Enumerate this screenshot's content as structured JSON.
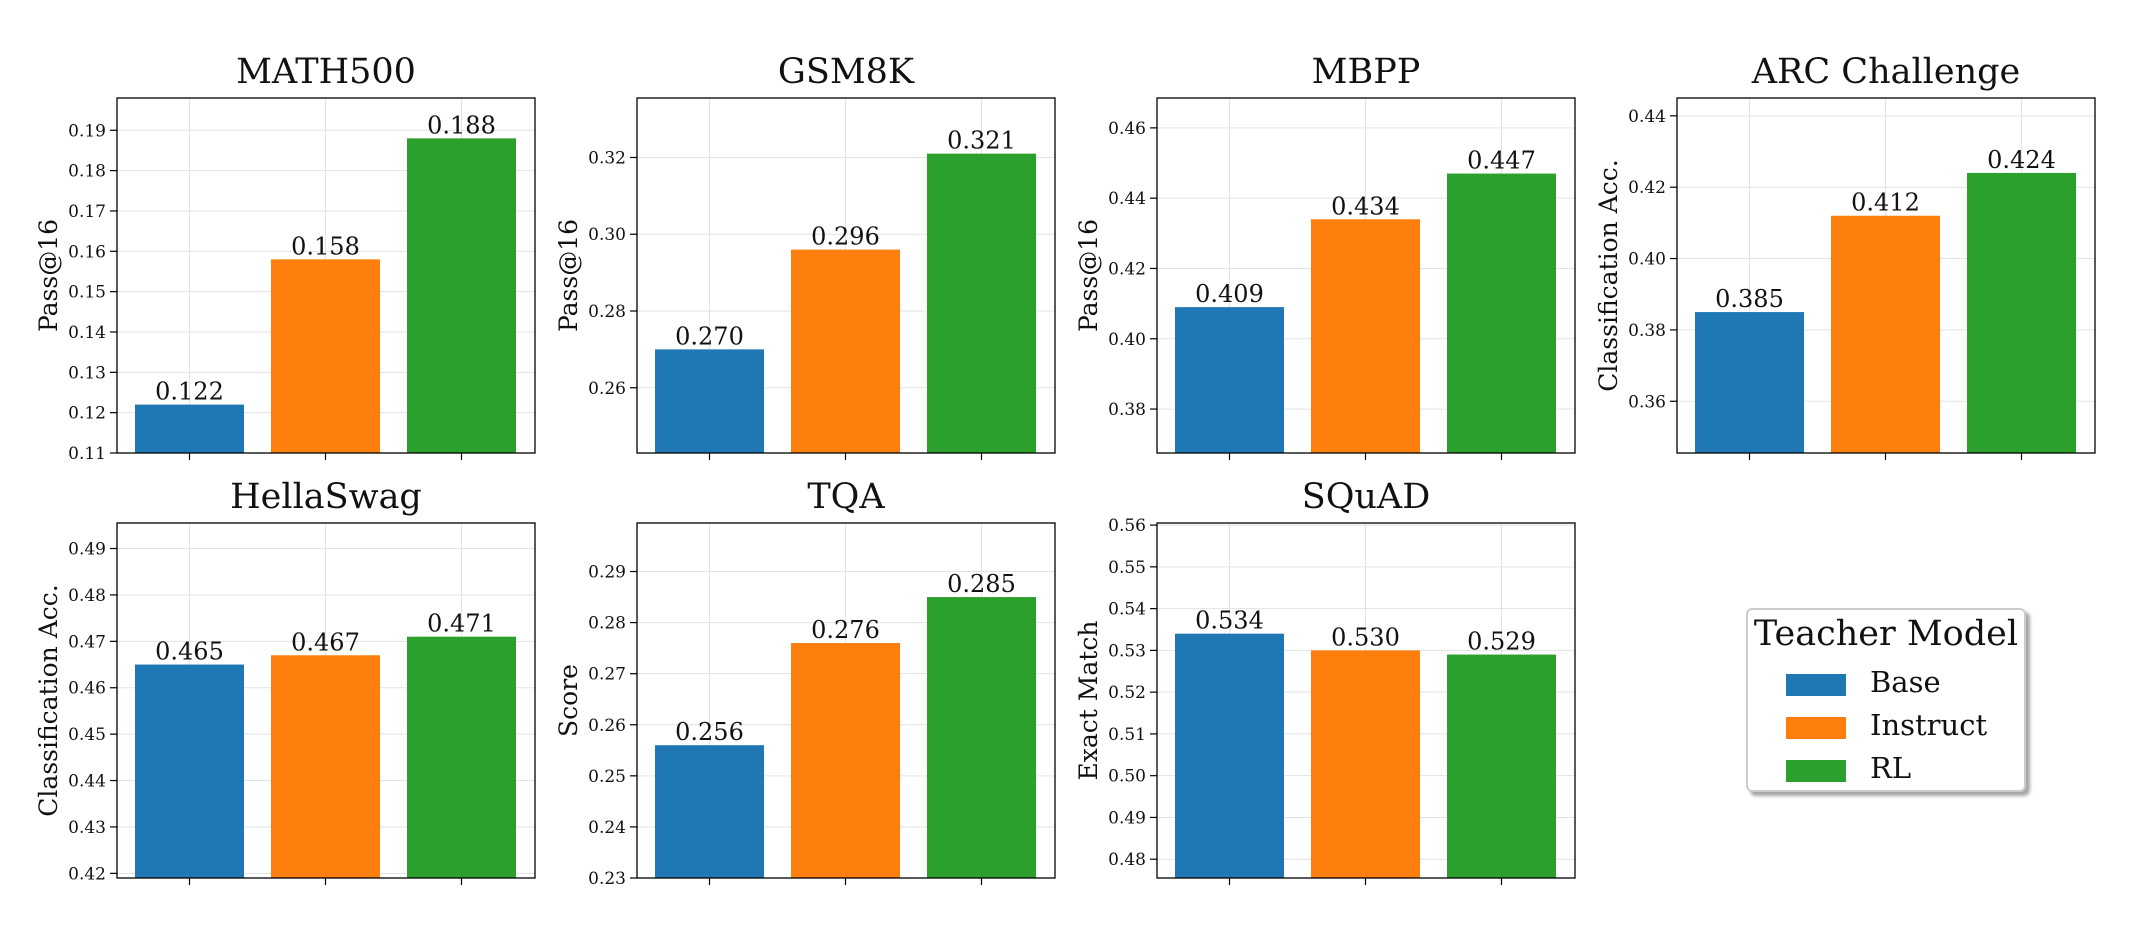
{
  "chart_data": [
    {
      "type": "bar",
      "title": "MATH500",
      "ylabel": "Pass@16",
      "categories": [
        "Base",
        "Instruct",
        "RL"
      ],
      "values": [
        0.122,
        0.158,
        0.188
      ],
      "labels": [
        "0.122",
        "0.158",
        "0.188"
      ],
      "ylim": [
        0.11,
        0.198
      ],
      "yticks": [
        0.11,
        0.12,
        0.13,
        0.14,
        0.15,
        0.16,
        0.17,
        0.18,
        0.19
      ],
      "ytick_labels": [
        "0.11",
        "0.12",
        "0.13",
        "0.14",
        "0.15",
        "0.16",
        "0.17",
        "0.18",
        "0.19"
      ]
    },
    {
      "type": "bar",
      "title": "GSM8K",
      "ylabel": "Pass@16",
      "categories": [
        "Base",
        "Instruct",
        "RL"
      ],
      "values": [
        0.27,
        0.296,
        0.321
      ],
      "labels": [
        "0.270",
        "0.296",
        "0.321"
      ],
      "ylim": [
        0.243,
        0.3355
      ],
      "yticks": [
        0.26,
        0.28,
        0.3,
        0.32
      ],
      "ytick_labels": [
        "0.26",
        "0.28",
        "0.30",
        "0.32"
      ]
    },
    {
      "type": "bar",
      "title": "MBPP",
      "ylabel": "Pass@16",
      "categories": [
        "Base",
        "Instruct",
        "RL"
      ],
      "values": [
        0.409,
        0.434,
        0.447
      ],
      "labels": [
        "0.409",
        "0.434",
        "0.447"
      ],
      "ylim": [
        0.3675,
        0.4685
      ],
      "yticks": [
        0.38,
        0.4,
        0.42,
        0.44,
        0.46
      ],
      "ytick_labels": [
        "0.38",
        "0.40",
        "0.42",
        "0.44",
        "0.46"
      ]
    },
    {
      "type": "bar",
      "title": "ARC Challenge",
      "ylabel": "Classification Acc.",
      "categories": [
        "Base",
        "Instruct",
        "RL"
      ],
      "values": [
        0.385,
        0.412,
        0.424
      ],
      "labels": [
        "0.385",
        "0.412",
        "0.424"
      ],
      "ylim": [
        0.3455,
        0.445
      ],
      "yticks": [
        0.36,
        0.38,
        0.4,
        0.42,
        0.44
      ],
      "ytick_labels": [
        "0.36",
        "0.38",
        "0.40",
        "0.42",
        "0.44"
      ]
    },
    {
      "type": "bar",
      "title": "HellaSwag",
      "ylabel": "Classification Acc.",
      "categories": [
        "Base",
        "Instruct",
        "RL"
      ],
      "values": [
        0.465,
        0.467,
        0.471
      ],
      "labels": [
        "0.465",
        "0.467",
        "0.471"
      ],
      "ylim": [
        0.419,
        0.4955
      ],
      "yticks": [
        0.42,
        0.43,
        0.44,
        0.45,
        0.46,
        0.47,
        0.48,
        0.49
      ],
      "ytick_labels": [
        "0.42",
        "0.43",
        "0.44",
        "0.45",
        "0.46",
        "0.47",
        "0.48",
        "0.49"
      ]
    },
    {
      "type": "bar",
      "title": "TQA",
      "ylabel": "Score",
      "categories": [
        "Base",
        "Instruct",
        "RL"
      ],
      "values": [
        0.256,
        0.276,
        0.285
      ],
      "labels": [
        "0.256",
        "0.276",
        "0.285"
      ],
      "ylim": [
        0.23,
        0.2995
      ],
      "yticks": [
        0.23,
        0.24,
        0.25,
        0.26,
        0.27,
        0.28,
        0.29
      ],
      "ytick_labels": [
        "0.23",
        "0.24",
        "0.25",
        "0.26",
        "0.27",
        "0.28",
        "0.29"
      ]
    },
    {
      "type": "bar",
      "title": "SQuAD",
      "ylabel": "Exact Match",
      "categories": [
        "Base",
        "Instruct",
        "RL"
      ],
      "values": [
        0.534,
        0.53,
        0.529
      ],
      "labels": [
        "0.534",
        "0.530",
        "0.529"
      ],
      "ylim": [
        0.4755,
        0.5605
      ],
      "yticks": [
        0.48,
        0.49,
        0.5,
        0.51,
        0.52,
        0.53,
        0.54,
        0.55,
        0.56
      ],
      "ytick_labels": [
        "0.48",
        "0.49",
        "0.50",
        "0.51",
        "0.52",
        "0.53",
        "0.54",
        "0.55",
        "0.56"
      ]
    }
  ],
  "colors": {
    "Base": "#1f77b4",
    "Instruct": "#ff7f0e",
    "RL": "#2ca02c"
  },
  "legend": {
    "title": "Teacher Model",
    "items": [
      {
        "label": "Base",
        "color": "#1f77b4"
      },
      {
        "label": "Instruct",
        "color": "#ff7f0e"
      },
      {
        "label": "RL",
        "color": "#2ca02c"
      }
    ]
  }
}
